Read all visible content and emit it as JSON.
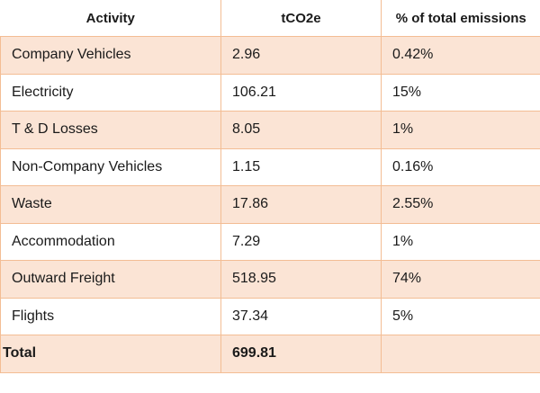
{
  "table": {
    "headers": {
      "activity": "Activity",
      "tco2e": "tCO2e",
      "percent": "% of total emissions"
    },
    "rows": [
      {
        "activity": "Company Vehicles",
        "tco2e": "2.96",
        "percent": "0.42%"
      },
      {
        "activity": "Electricity",
        "tco2e": "106.21",
        "percent": "15%"
      },
      {
        "activity": "T & D Losses",
        "tco2e": "8.05",
        "percent": "1%"
      },
      {
        "activity": "Non-Company Vehicles",
        "tco2e": "1.15",
        "percent": "0.16%"
      },
      {
        "activity": "Waste",
        "tco2e": "17.86",
        "percent": "2.55%"
      },
      {
        "activity": "Accommodation",
        "tco2e": "7.29",
        "percent": "1%"
      },
      {
        "activity": "Outward Freight",
        "tco2e": "518.95",
        "percent": "74%"
      },
      {
        "activity": "Flights",
        "tco2e": "37.34",
        "percent": "5%"
      }
    ],
    "total": {
      "label": "Total",
      "tco2e": "699.81",
      "percent": ""
    }
  },
  "colors": {
    "row_shade": "#fbe4d5",
    "border": "#f3bd94"
  }
}
